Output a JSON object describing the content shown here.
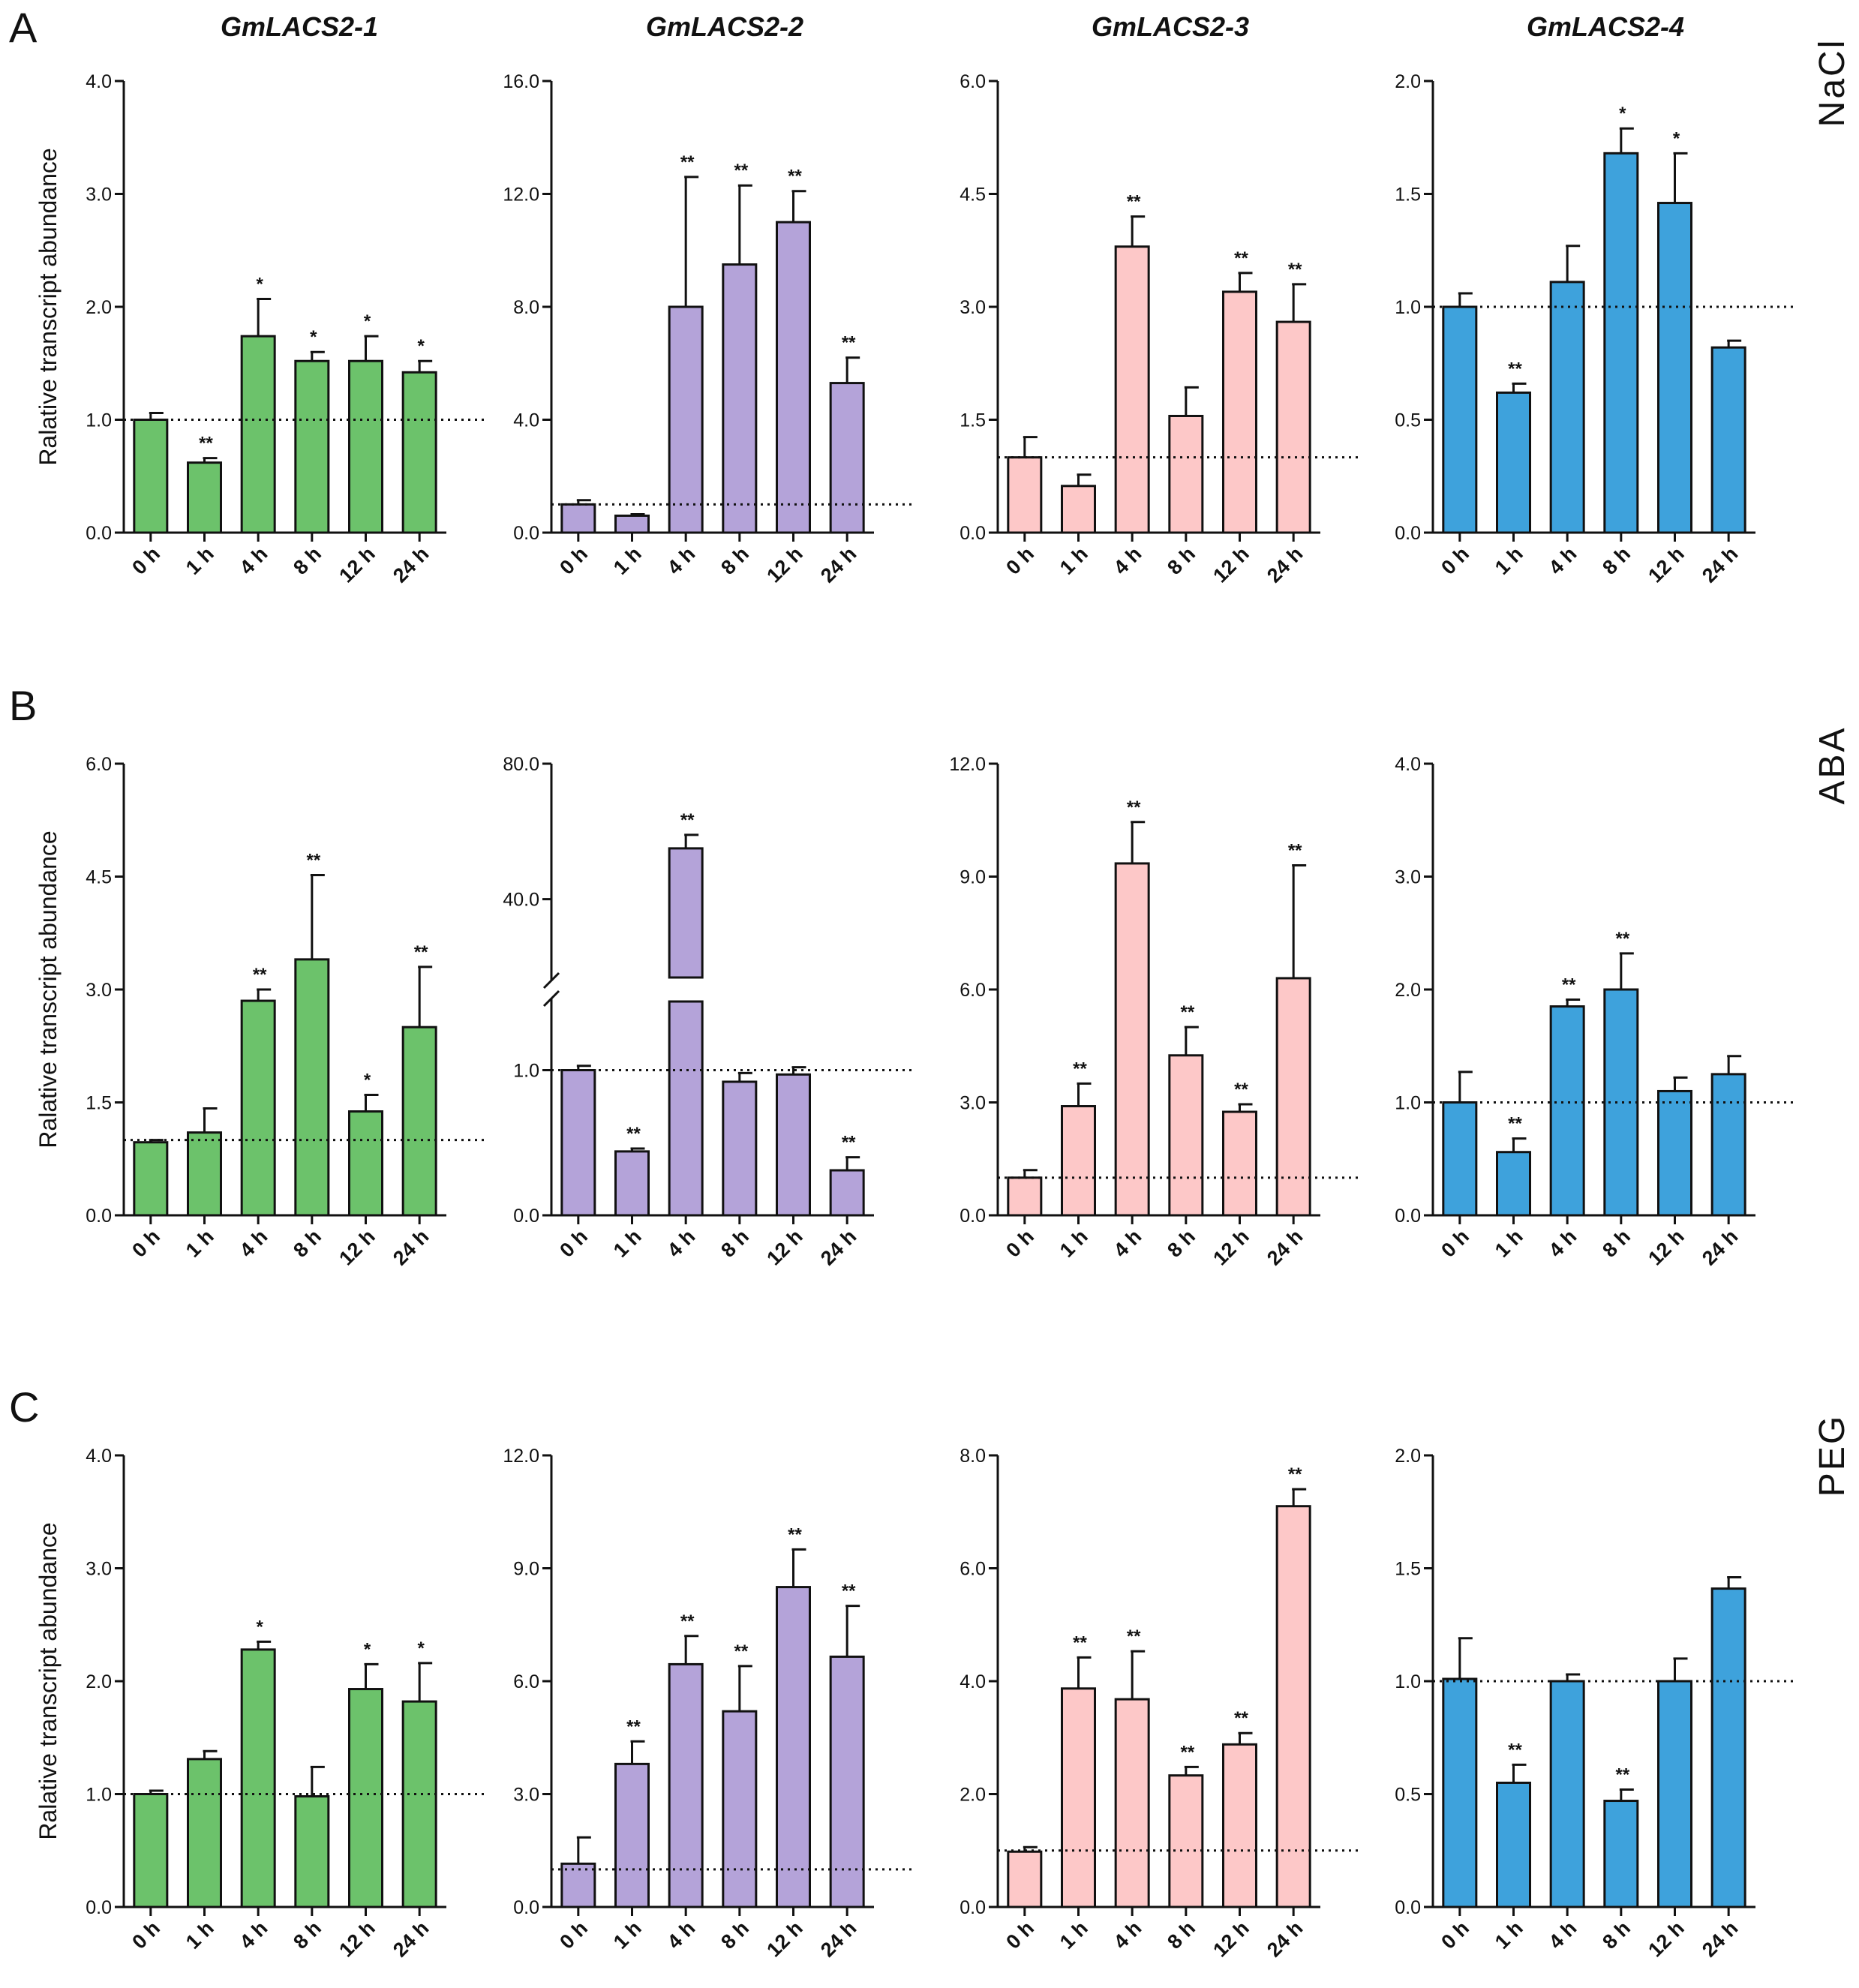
{
  "genes": [
    "GmLACS2-1",
    "GmLACS2-2",
    "GmLACS2-3",
    "GmLACS2-4"
  ],
  "time_points": [
    "0 h",
    "1 h",
    "4 h",
    "8 h",
    "12 h",
    "24 h"
  ],
  "ylabel": "Ralative transcript abundance",
  "colors": {
    "green": "#6cc26b",
    "purple": "#b4a3d9",
    "pink": "#fdc8c8",
    "blue": "#3ea2dc",
    "axis": "#111111"
  },
  "rows": [
    {
      "letter": "A",
      "treatment": "NaCl"
    },
    {
      "letter": "B",
      "treatment": "ABA"
    },
    {
      "letter": "C",
      "treatment": "PEG"
    }
  ],
  "chart_data": [
    {
      "id": "A1",
      "type": "bar",
      "row": 0,
      "col": 0,
      "color": "green",
      "categories": [
        "0 h",
        "1 h",
        "4 h",
        "8 h",
        "12 h",
        "24 h"
      ],
      "values": [
        1.0,
        0.62,
        1.74,
        1.52,
        1.52,
        1.42
      ],
      "errors": [
        0.06,
        0.04,
        0.33,
        0.08,
        0.22,
        0.1
      ],
      "significance": [
        "",
        "**",
        "*",
        "*",
        "*",
        "*"
      ],
      "ylim": [
        0,
        4
      ],
      "yticks": [
        "0.0",
        "1.0",
        "2.0",
        "3.0",
        "4.0"
      ],
      "reference": 1.0,
      "ylabel": "Ralative transcript abundance"
    },
    {
      "id": "A2",
      "type": "bar",
      "row": 0,
      "col": 1,
      "color": "purple",
      "categories": [
        "0 h",
        "1 h",
        "4 h",
        "8 h",
        "12 h",
        "24 h"
      ],
      "values": [
        1.0,
        0.6,
        8.0,
        9.5,
        11.0,
        5.3
      ],
      "errors": [
        0.15,
        0.05,
        4.6,
        2.8,
        1.1,
        0.9
      ],
      "significance": [
        "",
        "",
        "**",
        "**",
        "**",
        "**"
      ],
      "ylim": [
        0,
        16
      ],
      "yticks": [
        "0.0",
        "4.0",
        "8.0",
        "12.0",
        "16.0"
      ],
      "reference": 1.0
    },
    {
      "id": "A3",
      "type": "bar",
      "row": 0,
      "col": 2,
      "color": "pink",
      "categories": [
        "0 h",
        "1 h",
        "4 h",
        "8 h",
        "12 h",
        "24 h"
      ],
      "values": [
        1.0,
        0.62,
        3.8,
        1.55,
        3.2,
        2.8
      ],
      "errors": [
        0.27,
        0.15,
        0.4,
        0.38,
        0.25,
        0.5
      ],
      "significance": [
        "",
        "",
        "**",
        "",
        "**",
        "**"
      ],
      "ylim": [
        0,
        6
      ],
      "yticks": [
        "0.0",
        "1.5",
        "3.0",
        "4.5",
        "6.0"
      ],
      "reference": 1.0
    },
    {
      "id": "A4",
      "type": "bar",
      "row": 0,
      "col": 3,
      "color": "blue",
      "categories": [
        "0 h",
        "1 h",
        "4 h",
        "8 h",
        "12 h",
        "24 h"
      ],
      "values": [
        1.0,
        0.62,
        1.11,
        1.68,
        1.46,
        0.82
      ],
      "errors": [
        0.06,
        0.04,
        0.16,
        0.11,
        0.22,
        0.03
      ],
      "significance": [
        "",
        "**",
        "",
        "*",
        "*",
        ""
      ],
      "ylim": [
        0,
        2
      ],
      "yticks": [
        "0.0",
        "0.5",
        "1.0",
        "1.5",
        "2.0"
      ],
      "reference": 1.0
    },
    {
      "id": "B1",
      "type": "bar",
      "row": 1,
      "col": 0,
      "color": "green",
      "categories": [
        "0 h",
        "1 h",
        "4 h",
        "8 h",
        "12 h",
        "24 h"
      ],
      "values": [
        0.97,
        1.1,
        2.85,
        3.4,
        1.38,
        2.5
      ],
      "errors": [
        0.03,
        0.32,
        0.15,
        1.12,
        0.22,
        0.8
      ],
      "significance": [
        "",
        "",
        "**",
        "**",
        "*",
        "**"
      ],
      "ylim": [
        0,
        6
      ],
      "yticks": [
        "0.0",
        "1.5",
        "3.0",
        "4.5",
        "6.0"
      ],
      "reference": 1.0,
      "ylabel": "Ralative transcript abundance"
    },
    {
      "id": "B2",
      "type": "bar",
      "row": 1,
      "col": 1,
      "color": "purple",
      "categories": [
        "0 h",
        "1 h",
        "4 h",
        "8 h",
        "12 h",
        "24 h"
      ],
      "values": [
        1.0,
        0.44,
        55.0,
        0.92,
        0.97,
        0.31
      ],
      "errors": [
        0.03,
        0.02,
        4.0,
        0.06,
        0.05,
        0.09
      ],
      "significance": [
        "",
        "**",
        "**",
        "",
        "",
        "**"
      ],
      "ylim": [
        0,
        80
      ],
      "axis_break": [
        1.4,
        20
      ],
      "yticks": [
        "0.0",
        "1.0",
        "40.0",
        "80.0"
      ],
      "reference": 1.0
    },
    {
      "id": "B3",
      "type": "bar",
      "row": 1,
      "col": 2,
      "color": "pink",
      "categories": [
        "0 h",
        "1 h",
        "4 h",
        "8 h",
        "12 h",
        "24 h"
      ],
      "values": [
        1.0,
        2.9,
        9.35,
        4.25,
        2.75,
        6.3
      ],
      "errors": [
        0.2,
        0.6,
        1.1,
        0.75,
        0.2,
        3.0
      ],
      "significance": [
        "",
        "**",
        "**",
        "**",
        "**",
        "**"
      ],
      "ylim": [
        0,
        12
      ],
      "yticks": [
        "0.0",
        "3.0",
        "6.0",
        "9.0",
        "12.0"
      ],
      "reference": 1.0
    },
    {
      "id": "B4",
      "type": "bar",
      "row": 1,
      "col": 3,
      "color": "blue",
      "categories": [
        "0 h",
        "1 h",
        "4 h",
        "8 h",
        "12 h",
        "24 h"
      ],
      "values": [
        1.0,
        0.56,
        1.85,
        2.0,
        1.1,
        1.25
      ],
      "errors": [
        0.27,
        0.12,
        0.06,
        0.32,
        0.12,
        0.16
      ],
      "significance": [
        "",
        "**",
        "**",
        "**",
        "",
        ""
      ],
      "ylim": [
        0,
        4
      ],
      "yticks": [
        "0.0",
        "1.0",
        "2.0",
        "3.0",
        "4.0"
      ],
      "reference": 1.0
    },
    {
      "id": "C1",
      "type": "bar",
      "row": 2,
      "col": 0,
      "color": "green",
      "categories": [
        "0 h",
        "1 h",
        "4 h",
        "8 h",
        "12 h",
        "24 h"
      ],
      "values": [
        1.0,
        1.31,
        2.28,
        0.98,
        1.93,
        1.82
      ],
      "errors": [
        0.03,
        0.07,
        0.07,
        0.26,
        0.22,
        0.34
      ],
      "significance": [
        "",
        "",
        "*",
        "",
        "*",
        "*"
      ],
      "ylim": [
        0,
        4
      ],
      "yticks": [
        "0.0",
        "1.0",
        "2.0",
        "3.0",
        "4.0"
      ],
      "reference": 1.0,
      "ylabel": "Ralative transcript abundance"
    },
    {
      "id": "C2",
      "type": "bar",
      "row": 2,
      "col": 1,
      "color": "purple",
      "categories": [
        "0 h",
        "1 h",
        "4 h",
        "8 h",
        "12 h",
        "24 h"
      ],
      "values": [
        1.15,
        3.8,
        6.45,
        5.2,
        8.5,
        6.65
      ],
      "errors": [
        0.7,
        0.6,
        0.75,
        1.2,
        1.0,
        1.35
      ],
      "significance": [
        "",
        "**",
        "**",
        "**",
        "**",
        "**"
      ],
      "ylim": [
        0,
        12
      ],
      "yticks": [
        "0.0",
        "3.0",
        "6.0",
        "9.0",
        "12.0"
      ],
      "reference": 1.0
    },
    {
      "id": "C3",
      "type": "bar",
      "row": 2,
      "col": 2,
      "color": "pink",
      "categories": [
        "0 h",
        "1 h",
        "4 h",
        "8 h",
        "12 h",
        "24 h"
      ],
      "values": [
        0.98,
        3.87,
        3.68,
        2.33,
        2.88,
        7.1
      ],
      "errors": [
        0.08,
        0.55,
        0.85,
        0.15,
        0.2,
        0.3
      ],
      "significance": [
        "",
        "**",
        "**",
        "**",
        "**",
        "**"
      ],
      "ylim": [
        0,
        8
      ],
      "yticks": [
        "0.0",
        "2.0",
        "4.0",
        "6.0",
        "8.0"
      ],
      "reference": 1.0
    },
    {
      "id": "C4",
      "type": "bar",
      "row": 2,
      "col": 3,
      "color": "blue",
      "categories": [
        "0 h",
        "1 h",
        "4 h",
        "8 h",
        "12 h",
        "24 h"
      ],
      "values": [
        1.01,
        0.55,
        1.0,
        0.47,
        1.0,
        1.41
      ],
      "errors": [
        0.18,
        0.08,
        0.03,
        0.05,
        0.1,
        0.05
      ],
      "significance": [
        "",
        "**",
        "",
        "**",
        "",
        ""
      ],
      "ylim": [
        0,
        2
      ],
      "yticks": [
        "0.0",
        "0.5",
        "1.0",
        "1.5",
        "2.0"
      ],
      "reference": 1.0
    }
  ]
}
